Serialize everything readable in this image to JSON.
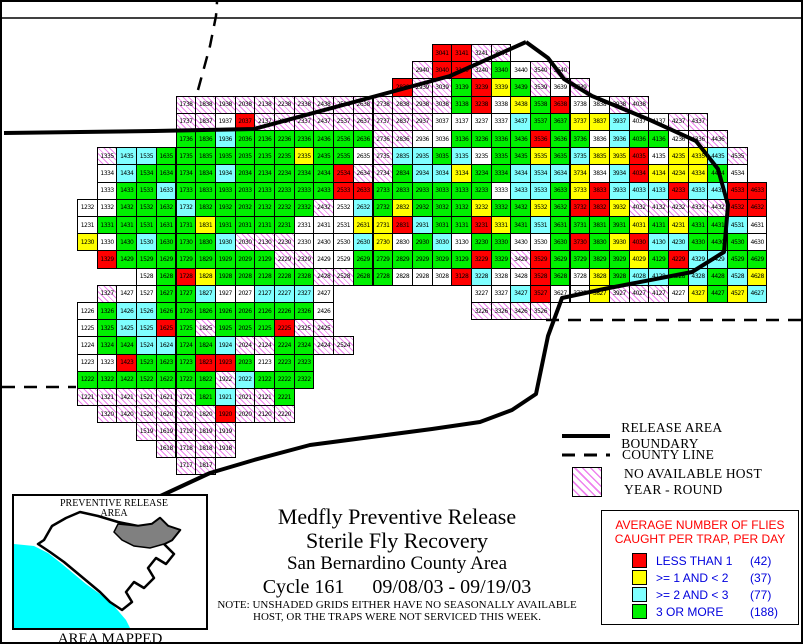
{
  "title": {
    "line1": "Medfly Preventive Release",
    "line2": "Sterile Fly Recovery",
    "line3": "San Bernardino County Area",
    "cycle": "Cycle 161",
    "dates": "09/08/03 - 09/19/03",
    "note_line1": "NOTE: UNSHADED GRIDS EITHER HAVE NO SEASONALLY AVAILABLE",
    "note_line2": "HOST, OR THE TRAPS WERE NOT SERVICED THIS WEEK."
  },
  "line_legend": {
    "items": [
      {
        "sample": "solid",
        "label": "RELEASE AREA BOUNDARY"
      },
      {
        "sample": "dashed",
        "label": "COUNTY LINE"
      },
      {
        "sample": "hatch",
        "label": "NO AVAILABLE HOST",
        "label2": "YEAR - ROUND"
      }
    ]
  },
  "flies_legend": {
    "title_line1": "AVERAGE NUMBER OF FLIES",
    "title_line2": "CAUGHT PER TRAP, PER DAY",
    "items": [
      {
        "color": "#ff0000",
        "label": "LESS THAN 1",
        "count": "(42)"
      },
      {
        "color": "#ffff00",
        "label": ">= 1 AND < 2",
        "count": "(37)"
      },
      {
        "color": "#7fffff",
        "label": ">= 2 AND < 3",
        "count": "(77)"
      },
      {
        "color": "#00f000",
        "label": "3 OR MORE",
        "count": "(188)"
      }
    ]
  },
  "inset": {
    "label_line1": "PREVENTIVE RELEASE",
    "label_line2": "AREA",
    "caption": "AREA MAPPED"
  },
  "colors": {
    "R": "#ff0000",
    "Y": "#ffff00",
    "C": "#7fffff",
    "G": "#00f000",
    "W": "#ffffff",
    "hatch_line": "#ee82ee",
    "legend_text": "#0000dd",
    "legend_title": "#ff0000"
  },
  "grid": {
    "col_min": 12,
    "row_min": 17,
    "row_max": 41,
    "rows": [
      {
        "row": 41,
        "segs": [
          [
            30,
            "RRHH"
          ]
        ]
      },
      {
        "row": 40,
        "segs": [
          [
            29,
            "HRRHGWHH"
          ]
        ]
      },
      {
        "row": 39,
        "segs": [
          [
            28,
            "RHHGRYGHWH"
          ]
        ]
      },
      {
        "row": 38,
        "segs": [
          [
            17,
            "HHHHHHHHHHHHHHGRWYGRWWHH"
          ]
        ]
      },
      {
        "row": 37,
        "segs": [
          [
            17,
            "HHWRHHHHHHHHHWWWWCGGYYCWWHH"
          ]
        ]
      },
      {
        "row": 36,
        "segs": [
          [
            17,
            "GGCGGGGGGGHHWWGGGGRGGWCGGWHH"
          ]
        ]
      },
      {
        "row": 35,
        "segs": [
          [
            13,
            "HCCGGGGGGGYGGWHCCGCWGGYGCYYRWYYCH"
          ]
        ]
      },
      {
        "row": 34,
        "segs": [
          [
            13,
            "WCGGGGCGGGGGRHHGCCYGGCCCYWCRYYYGW"
          ]
        ]
      },
      {
        "row": 33,
        "segs": [
          [
            13,
            "WGGCGGGGGGGGRRGGGGGGWCCGYRCCCRCCRR"
          ]
        ]
      },
      {
        "row": 32,
        "segs": [
          [
            12,
            "WWGGGCGGGGGGHWCGYGGGYGGYGRRYHHHHHRR"
          ]
        ]
      },
      {
        "row": 31,
        "segs": [
          [
            12,
            "WGGGGGYGGGGWWWYYRCGGRYGCGGGGYGYGGCW"
          ]
        ]
      },
      {
        "row": 30,
        "segs": [
          [
            12,
            "YWGCGGGCHHHWWWCYWGCWGGWWGRGYRCCGGGW"
          ]
        ]
      },
      {
        "row": 29,
        "segs": [
          [
            13,
            "RGGGGGGGGHHWWGGGGGGRGHRGGGGYGRCCGG"
          ]
        ]
      },
      {
        "row": 28,
        "segs": [
          [
            15,
            "WGRYGGGGGHHGGWWWRCWWRGWYGCCGCGCY"
          ]
        ]
      },
      {
        "row": 27,
        "segs": [
          [
            13,
            "HWWGGCWWCCCW"
          ],
          [
            32,
            "WWCRWWYHHHWYGYC"
          ]
        ]
      },
      {
        "row": 26,
        "segs": [
          [
            12,
            "WGCCGGGGGGGGW"
          ],
          [
            32,
            "HHHH"
          ]
        ]
      },
      {
        "row": 25,
        "segs": [
          [
            12,
            "WGCCRGHGGGRHH"
          ]
        ]
      },
      {
        "row": 24,
        "segs": [
          [
            12,
            "WGGCCGGCHHGGHH"
          ]
        ]
      },
      {
        "row": 23,
        "segs": [
          [
            12,
            "WWRGGGRRGWGG"
          ]
        ]
      },
      {
        "row": 22,
        "segs": [
          [
            12,
            "GGGGGGGHCGGG"
          ]
        ]
      },
      {
        "row": 21,
        "segs": [
          [
            12,
            "HHHHHHGCHHG"
          ]
        ]
      },
      {
        "row": 20,
        "segs": [
          [
            13,
            "HHHHHHRHHH"
          ]
        ]
      },
      {
        "row": 19,
        "segs": [
          [
            15,
            "HHHHH"
          ]
        ]
      },
      {
        "row": 18,
        "segs": [
          [
            16,
            "HHHH"
          ]
        ]
      },
      {
        "row": 17,
        "segs": [
          [
            17,
            "HH"
          ]
        ]
      }
    ]
  }
}
